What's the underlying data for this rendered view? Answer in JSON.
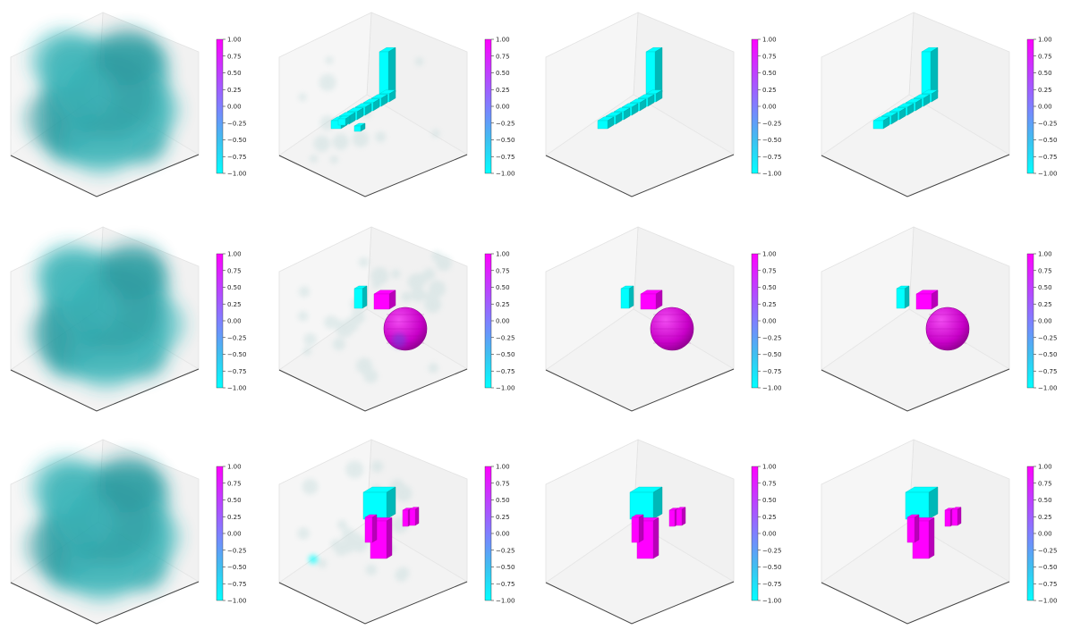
{
  "figure": {
    "type": "grid-of-3d-voxel-plots",
    "rows": 3,
    "cols": 4,
    "colormap": {
      "stops": [
        "#00ffff",
        "#3fb0f0",
        "#7f7fff",
        "#bf3fff",
        "#ff00ff"
      ],
      "cmin": -1.0,
      "cmax": 1.0,
      "ticks": [
        "1.00",
        "0.75",
        "0.50",
        "0.25",
        "0.00",
        "−0.25",
        "−0.50",
        "−0.75",
        "−1.00"
      ]
    }
  },
  "chart_data": [
    {
      "type": "voxel3d",
      "row": 1,
      "col": 1,
      "content": "diffuse-cloud",
      "value": -1.0
    },
    {
      "type": "voxel3d",
      "row": 1,
      "col": 2,
      "content": "noisy-bent-rod",
      "value": -1.0
    },
    {
      "type": "voxel3d",
      "row": 1,
      "col": 3,
      "content": "bent-rod",
      "value": -1.0
    },
    {
      "type": "voxel3d",
      "row": 1,
      "col": 4,
      "content": "bent-rod",
      "value": -1.0
    },
    {
      "type": "voxel3d",
      "row": 2,
      "col": 1,
      "content": "diffuse-cloud",
      "value": -1.0
    },
    {
      "type": "voxel3d",
      "row": 2,
      "col": 2,
      "content": "noisy-cube-pair-and-sphere",
      "values": [
        -1.0,
        1.0,
        1.0
      ]
    },
    {
      "type": "voxel3d",
      "row": 2,
      "col": 3,
      "content": "cube-pair-and-sphere",
      "values": [
        -1.0,
        1.0,
        1.0
      ]
    },
    {
      "type": "voxel3d",
      "row": 2,
      "col": 4,
      "content": "cube-pair-and-sphere",
      "values": [
        -1.0,
        1.0,
        1.0
      ]
    },
    {
      "type": "voxel3d",
      "row": 3,
      "col": 1,
      "content": "diffuse-cloud",
      "value": -1.0
    },
    {
      "type": "voxel3d",
      "row": 3,
      "col": 2,
      "content": "noisy-blocks",
      "values": [
        -1.0,
        1.0,
        1.0
      ]
    },
    {
      "type": "voxel3d",
      "row": 3,
      "col": 3,
      "content": "blocks",
      "values": [
        -1.0,
        1.0,
        1.0
      ]
    },
    {
      "type": "voxel3d",
      "row": 3,
      "col": 4,
      "content": "blocks",
      "values": [
        -1.0,
        1.0,
        1.0
      ]
    }
  ]
}
